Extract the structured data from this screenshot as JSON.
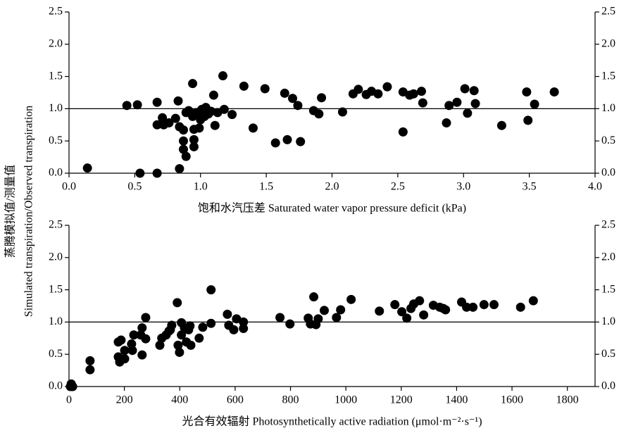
{
  "chart_data": [
    {
      "type": "scatter",
      "xlabel": "饱和水汽压差 Saturated water vapor pressure deficit (kPa)",
      "ylabel": [
        "蒸腾模拟值/测量值",
        "Simulated transpiration/Observed transpiration"
      ],
      "color": "#000000",
      "reference_line": 1,
      "xlim": [
        0,
        4
      ],
      "ylim": [
        0,
        2.5
      ],
      "xticks": [
        {
          "value": 0,
          "label": "0.0"
        },
        0.5,
        {
          "value": 1,
          "label": "1.0"
        },
        1.5,
        {
          "value": 2,
          "label": "2.0"
        },
        2.5,
        {
          "value": 3,
          "label": "3.0"
        },
        3.5,
        {
          "value": 4,
          "label": "4.0"
        }
      ],
      "yticks": [
        {
          "value": 0,
          "label": "0.0"
        },
        0.5,
        {
          "value": 1,
          "label": "1.0"
        },
        1.5,
        {
          "value": 2,
          "label": "2.0"
        },
        2.5
      ],
      "x": [
        0.14,
        0.44,
        0.52,
        0.54,
        0.67,
        0.67,
        0.67,
        0.71,
        0.72,
        0.76,
        0.81,
        0.83,
        0.84,
        0.84,
        0.87,
        0.87,
        0.87,
        0.89,
        0.89,
        0.91,
        0.94,
        0.95,
        0.95,
        0.95,
        0.94,
        0.97,
        0.99,
        1.0,
        1.01,
        1.03,
        1.04,
        1.06,
        1.08,
        1.1,
        1.11,
        1.13,
        1.17,
        1.18,
        1.24,
        1.33,
        1.4,
        1.49,
        1.57,
        1.64,
        1.66,
        1.7,
        1.74,
        1.76,
        1.86,
        1.9,
        1.92,
        2.08,
        2.16,
        2.2,
        2.26,
        2.3,
        2.35,
        2.42,
        2.54,
        2.54,
        2.59,
        2.62,
        2.68,
        2.69,
        2.87,
        2.89,
        2.95,
        3.01,
        3.03,
        3.08,
        3.09,
        3.29,
        3.48,
        3.49,
        3.54,
        3.69
      ],
      "values": [
        0.08,
        1.05,
        1.06,
        0.0,
        0.0,
        1.1,
        0.75,
        0.86,
        0.75,
        0.78,
        0.85,
        1.12,
        0.07,
        0.72,
        0.67,
        0.5,
        0.37,
        0.26,
        0.94,
        0.97,
        0.88,
        0.68,
        0.52,
        0.41,
        1.39,
        0.94,
        0.7,
        0.83,
        0.99,
        0.88,
        1.02,
        0.92,
        0.96,
        1.21,
        0.74,
        0.94,
        1.51,
        0.99,
        0.91,
        1.35,
        0.7,
        1.31,
        0.47,
        1.24,
        0.52,
        1.16,
        1.05,
        0.49,
        0.97,
        0.92,
        1.17,
        0.95,
        1.23,
        1.3,
        1.22,
        1.27,
        1.23,
        1.34,
        0.64,
        1.26,
        1.21,
        1.23,
        1.27,
        1.09,
        0.78,
        1.05,
        1.1,
        1.31,
        0.93,
        1.28,
        1.08,
        0.74,
        1.26,
        0.82,
        1.07,
        1.26
      ]
    },
    {
      "type": "scatter",
      "xlabel": "光合有效辐射 Photosynthetically active radiation (μmol·m⁻²·s⁻¹)",
      "color": "#000000",
      "reference_line": 1,
      "xlim": [
        0,
        1900
      ],
      "ylim": [
        0,
        2.5
      ],
      "xticks": [
        0,
        200,
        400,
        600,
        800,
        1000,
        1200,
        1400,
        1600,
        1800
      ],
      "yticks": [
        {
          "value": 0,
          "label": "0.0"
        },
        0.5,
        {
          "value": 1,
          "label": "1.0"
        },
        1.5,
        {
          "value": 2,
          "label": "2.0"
        },
        2.5
      ],
      "x": [
        8,
        13,
        5,
        76,
        76,
        178,
        188,
        178,
        183,
        201,
        201,
        226,
        234,
        229,
        259,
        264,
        264,
        277,
        277,
        328,
        335,
        351,
        361,
        371,
        366,
        391,
        394,
        399,
        406,
        406,
        417,
        424,
        432,
        440,
        437,
        470,
        483,
        513,
        513,
        572,
        577,
        595,
        605,
        630,
        630,
        762,
        798,
        864,
        872,
        884,
        892,
        900,
        922,
        966,
        981,
        1019,
        1121,
        1177,
        1202,
        1220,
        1235,
        1245,
        1266,
        1281,
        1316,
        1339,
        1352,
        1360,
        1418,
        1436,
        1459,
        1499,
        1535,
        1631,
        1677
      ],
      "values": [
        0.04,
        0.0,
        0.0,
        0.4,
        0.26,
        0.69,
        0.72,
        0.46,
        0.38,
        0.56,
        0.43,
        0.66,
        0.8,
        0.56,
        0.8,
        0.91,
        0.49,
        1.07,
        0.74,
        0.64,
        0.75,
        0.8,
        0.86,
        0.95,
        0.88,
        1.3,
        0.64,
        0.53,
        0.8,
        0.99,
        0.91,
        0.69,
        0.88,
        0.64,
        0.94,
        0.75,
        0.92,
        0.98,
        1.5,
        1.12,
        0.95,
        0.88,
        1.05,
        0.9,
        1.0,
        1.07,
        0.97,
        1.06,
        0.97,
        1.39,
        0.96,
        1.05,
        1.18,
        1.07,
        1.19,
        1.35,
        1.17,
        1.27,
        1.16,
        1.06,
        1.21,
        1.28,
        1.33,
        1.11,
        1.26,
        1.23,
        1.21,
        1.19,
        1.31,
        1.23,
        1.23,
        1.27,
        1.27,
        1.23,
        1.33
      ]
    }
  ]
}
